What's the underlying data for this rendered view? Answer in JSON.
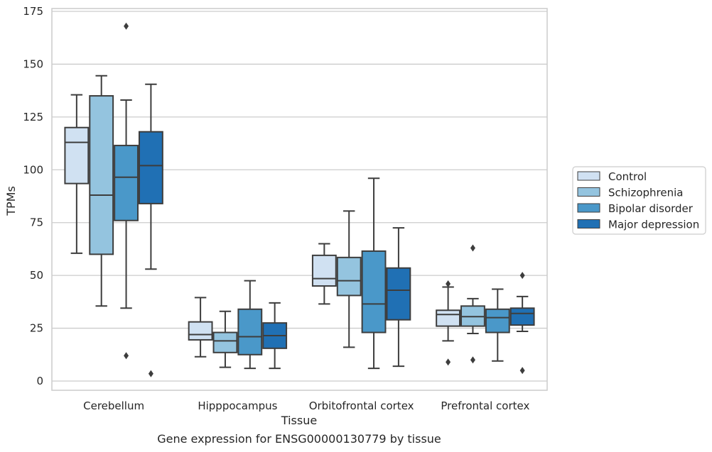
{
  "chart_data": {
    "type": "box",
    "ylabel": "TPMs",
    "xlabel": "Tissue",
    "caption": "Gene expression for ENSG00000130779 by tissue",
    "ylim": [
      -4,
      176
    ],
    "yticks": [
      0,
      25,
      50,
      75,
      100,
      125,
      150,
      175
    ],
    "grid": "horizontal",
    "legend_placement": "right",
    "categories": [
      "Cerebellum",
      "Hipppocampus",
      "Orbitofrontal cortex",
      "Prefrontal cortex"
    ],
    "series": [
      {
        "name": "Control",
        "color": "#d0e1f2",
        "boxes": [
          {
            "whisker_low": 60.5,
            "q1": 93.5,
            "median": 113,
            "q3": 120,
            "whisker_high": 135.5,
            "outliers": []
          },
          {
            "whisker_low": 11.5,
            "q1": 19.5,
            "median": 22,
            "q3": 28,
            "whisker_high": 39.5,
            "outliers": []
          },
          {
            "whisker_low": 36.5,
            "q1": 45,
            "median": 48.5,
            "q3": 59.5,
            "whisker_high": 65,
            "outliers": []
          },
          {
            "whisker_low": 19,
            "q1": 26,
            "median": 31.5,
            "q3": 33.5,
            "whisker_high": 44.5,
            "outliers": [
              46,
              9
            ]
          }
        ]
      },
      {
        "name": "Schizophrenia",
        "color": "#94c4df",
        "boxes": [
          {
            "whisker_low": 35.5,
            "q1": 60,
            "median": 88,
            "q3": 135,
            "whisker_high": 144.5,
            "outliers": []
          },
          {
            "whisker_low": 6.5,
            "q1": 13.5,
            "median": 19,
            "q3": 23,
            "whisker_high": 33,
            "outliers": []
          },
          {
            "whisker_low": 16,
            "q1": 40.5,
            "median": 47.5,
            "q3": 58.5,
            "whisker_high": 80.5,
            "outliers": []
          },
          {
            "whisker_low": 22.5,
            "q1": 26,
            "median": 30.5,
            "q3": 35.5,
            "whisker_high": 39,
            "outliers": [
              63,
              10
            ]
          }
        ]
      },
      {
        "name": "Bipolar disorder",
        "color": "#4a98c9",
        "boxes": [
          {
            "whisker_low": 34.5,
            "q1": 76,
            "median": 96.5,
            "q3": 111.5,
            "whisker_high": 133,
            "outliers": [
              168,
              12
            ]
          },
          {
            "whisker_low": 6,
            "q1": 12.5,
            "median": 21,
            "q3": 34,
            "whisker_high": 47.5,
            "outliers": []
          },
          {
            "whisker_low": 6,
            "q1": 23,
            "median": 36.5,
            "q3": 61.5,
            "whisker_high": 96,
            "outliers": []
          },
          {
            "whisker_low": 9.5,
            "q1": 23,
            "median": 30,
            "q3": 34,
            "whisker_high": 43.5,
            "outliers": []
          }
        ]
      },
      {
        "name": "Major depression",
        "color": "#2070b4",
        "boxes": [
          {
            "whisker_low": 53,
            "q1": 84,
            "median": 102,
            "q3": 118,
            "whisker_high": 140.5,
            "outliers": [
              3.5
            ]
          },
          {
            "whisker_low": 6,
            "q1": 15.5,
            "median": 21.5,
            "q3": 27.5,
            "whisker_high": 37,
            "outliers": []
          },
          {
            "whisker_low": 7,
            "q1": 29,
            "median": 43,
            "q3": 53.5,
            "whisker_high": 72.5,
            "outliers": []
          },
          {
            "whisker_low": 23.5,
            "q1": 26.5,
            "median": 32,
            "q3": 34.5,
            "whisker_high": 40,
            "outliers": [
              50,
              5
            ]
          }
        ]
      }
    ]
  }
}
